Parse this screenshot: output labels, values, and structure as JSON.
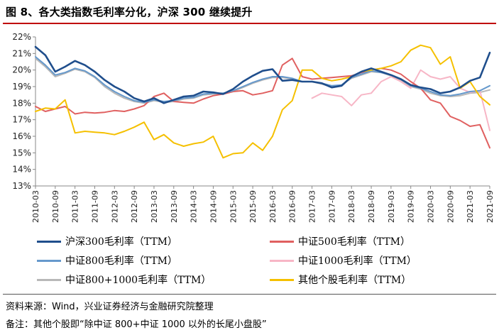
{
  "figure": {
    "title": "图 8、各大类指数毛利率分化，沪深 300 继续提升",
    "source": "资料来源：Wind，兴业证券经济与金融研究院整理",
    "note": "备注：其他个股即“除中证 800+中证 1000 以外的长尾小盘股”"
  },
  "chart_data": {
    "type": "line",
    "title": "",
    "xlabel": "",
    "ylabel": "",
    "ylim": [
      13,
      22
    ],
    "yticks": [
      13,
      14,
      15,
      16,
      17,
      18,
      19,
      20,
      21,
      22
    ],
    "ytick_labels": [
      "13%",
      "14%",
      "15%",
      "16%",
      "17%",
      "18%",
      "19%",
      "20%",
      "21%",
      "22%"
    ],
    "x_tick_labels": [
      "2010-03",
      "2010-09",
      "2011-03",
      "2011-09",
      "2012-03",
      "2012-09",
      "2013-03",
      "2013-09",
      "2014-03",
      "2014-09",
      "2015-03",
      "2015-09",
      "2016-03",
      "2016-09",
      "2017-03",
      "2017-09",
      "2018-03",
      "2018-09",
      "2019-03",
      "2019-09",
      "2020-03",
      "2020-09",
      "2021-03",
      "2021-09"
    ],
    "x": [
      "2010-03",
      "2010-06",
      "2010-09",
      "2010-12",
      "2011-03",
      "2011-06",
      "2011-09",
      "2011-12",
      "2012-03",
      "2012-06",
      "2012-09",
      "2012-12",
      "2013-03",
      "2013-06",
      "2013-09",
      "2013-12",
      "2014-03",
      "2014-06",
      "2014-09",
      "2014-12",
      "2015-03",
      "2015-06",
      "2015-09",
      "2015-12",
      "2016-03",
      "2016-06",
      "2016-09",
      "2016-12",
      "2017-03",
      "2017-06",
      "2017-09",
      "2017-12",
      "2018-03",
      "2018-06",
      "2018-09",
      "2018-12",
      "2019-03",
      "2019-06",
      "2019-09",
      "2019-12",
      "2020-03",
      "2020-06",
      "2020-09",
      "2020-12",
      "2021-03",
      "2021-06",
      "2021-09"
    ],
    "series": [
      {
        "name": "沪深300毛利率（TTM）",
        "color": "#1f4e8c",
        "values": [
          21.4,
          20.9,
          19.9,
          20.2,
          20.55,
          20.3,
          19.9,
          19.4,
          19.0,
          18.7,
          18.3,
          18.1,
          18.3,
          18.0,
          18.2,
          18.4,
          18.45,
          18.7,
          18.65,
          18.55,
          18.85,
          19.3,
          19.65,
          19.95,
          20.05,
          19.35,
          19.4,
          19.3,
          19.3,
          19.2,
          18.95,
          19.05,
          19.6,
          19.9,
          20.1,
          19.9,
          19.7,
          19.45,
          19.1,
          18.95,
          18.85,
          18.6,
          18.7,
          18.95,
          19.35,
          19.55,
          21.05
        ]
      },
      {
        "name": "中证500毛利率（TTM）",
        "color": "#e06060",
        "values": [
          17.8,
          17.5,
          17.65,
          17.8,
          17.35,
          17.45,
          17.4,
          17.45,
          17.55,
          17.5,
          17.65,
          17.85,
          18.4,
          18.6,
          18.1,
          18.05,
          18.0,
          18.25,
          18.45,
          18.55,
          18.7,
          18.75,
          18.5,
          18.6,
          18.75,
          20.3,
          20.7,
          19.6,
          19.45,
          19.5,
          19.55,
          19.6,
          19.65,
          19.85,
          20.0,
          20.1,
          20.0,
          19.75,
          19.3,
          18.9,
          18.2,
          18.0,
          17.2,
          16.95,
          16.6,
          16.7,
          15.3
        ]
      },
      {
        "name": "中证800毛利率（TTM）",
        "color": "#6699cc",
        "values": [
          20.8,
          20.3,
          19.7,
          19.85,
          20.1,
          19.95,
          19.6,
          19.1,
          18.7,
          18.4,
          18.15,
          18.05,
          18.2,
          18.1,
          18.15,
          18.3,
          18.35,
          18.55,
          18.6,
          18.6,
          18.75,
          19.0,
          19.25,
          19.45,
          19.6,
          19.6,
          19.5,
          19.3,
          19.3,
          19.2,
          19.05,
          19.1,
          19.55,
          19.75,
          19.95,
          19.85,
          19.7,
          19.45,
          19.05,
          18.9,
          18.7,
          18.5,
          18.45,
          18.55,
          18.7,
          18.75,
          19.05
        ]
      },
      {
        "name": "中证1000毛利率（TTM）",
        "color": "#f7b6c6",
        "values": [
          null,
          null,
          null,
          null,
          null,
          null,
          null,
          null,
          null,
          null,
          null,
          null,
          null,
          null,
          null,
          null,
          null,
          null,
          null,
          null,
          null,
          null,
          null,
          null,
          null,
          null,
          null,
          null,
          18.3,
          18.6,
          18.5,
          18.4,
          17.85,
          18.5,
          18.6,
          19.3,
          19.6,
          19.3,
          18.9,
          20.0,
          19.6,
          19.45,
          19.6,
          18.9,
          18.65,
          18.75,
          16.35
        ]
      },
      {
        "name": "中证800+1000毛利率（TTM）",
        "color": "#b8b8b8",
        "values": [
          20.7,
          20.2,
          19.6,
          19.8,
          20.05,
          19.9,
          19.55,
          19.0,
          18.6,
          18.3,
          18.1,
          18.0,
          18.15,
          18.05,
          18.1,
          18.25,
          18.3,
          18.5,
          18.55,
          18.55,
          18.7,
          18.95,
          19.2,
          19.4,
          19.55,
          19.55,
          19.45,
          19.3,
          19.3,
          19.15,
          19.0,
          19.1,
          19.5,
          19.7,
          19.9,
          19.85,
          19.65,
          19.4,
          19.0,
          18.85,
          18.6,
          18.45,
          18.4,
          18.45,
          18.6,
          18.65,
          18.8
        ]
      },
      {
        "name": "其他个股毛利率（TTM）",
        "color": "#f5c000",
        "values": [
          17.5,
          17.7,
          17.65,
          18.2,
          16.2,
          16.3,
          16.25,
          16.2,
          16.1,
          16.3,
          16.55,
          16.85,
          15.8,
          16.1,
          15.6,
          15.4,
          15.55,
          15.65,
          16.0,
          14.7,
          14.95,
          15.0,
          15.6,
          15.15,
          16.0,
          17.6,
          18.15,
          20.0,
          20.0,
          19.5,
          19.35,
          19.45,
          19.6,
          19.9,
          20.0,
          20.1,
          20.25,
          20.5,
          21.2,
          21.5,
          21.35,
          20.35,
          20.8,
          18.9,
          19.3,
          18.4,
          17.9
        ]
      }
    ],
    "legend": "bottom"
  }
}
